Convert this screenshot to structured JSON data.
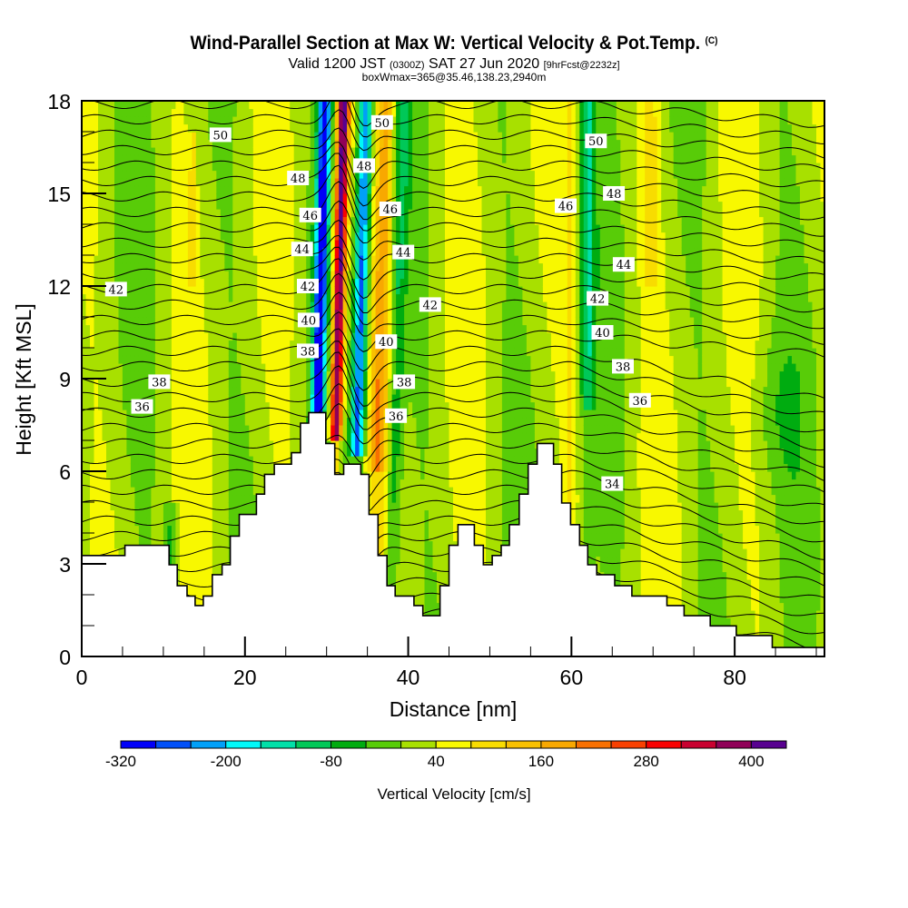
{
  "header": {
    "title": "Wind-Parallel Section at Max W: Vertical Velocity & Pot.Temp.",
    "title_suffix": "(C)",
    "subtitle_main": "Valid 1200 JST",
    "subtitle_utc": "(0300Z)",
    "subtitle_date": "SAT 27 Jun 2020",
    "subtitle_fcst": "[9hrFcst@2232z]",
    "box_info": "boxWmax=365@35.46,138.23,2940m"
  },
  "chart_data": {
    "type": "heatmap",
    "title": "Wind-Parallel Section at Max W: Vertical Velocity & Pot.Temp.",
    "xlabel": "Distance [nm]",
    "ylabel": "Height [Kft MSL]",
    "xlim": [
      0,
      91
    ],
    "ylim": [
      0,
      18
    ],
    "x_ticks": [
      0,
      20,
      40,
      60,
      80
    ],
    "x_tick_labels": [
      "0",
      "20",
      "40",
      "60",
      "80"
    ],
    "x_minor_step": 5,
    "y_ticks": [
      0,
      3,
      6,
      9,
      12,
      15,
      18
    ],
    "y_tick_labels": [
      "0",
      "3",
      "6",
      "9",
      "12",
      "15",
      "18"
    ],
    "y_minor_step": 1,
    "colorbar": {
      "label": "Vertical Velocity [cm/s]",
      "min": -320,
      "max": 440,
      "step": 40,
      "tick_values": [
        -320,
        -200,
        -80,
        40,
        160,
        280,
        400
      ],
      "tick_labels": [
        "-320",
        "-200",
        "-80",
        "40",
        "160",
        "280",
        "400"
      ],
      "colors": [
        "#0000f8",
        "#0050f8",
        "#00a0f8",
        "#00f8f8",
        "#00e0a8",
        "#00c858",
        "#00ac10",
        "#58cc08",
        "#a8e000",
        "#f8f800",
        "#f8dc00",
        "#f8c000",
        "#f8a800",
        "#f87000",
        "#f84000",
        "#f80000",
        "#c80030",
        "#900058",
        "#580090"
      ]
    },
    "updraft_max_cm_s": 365,
    "updraft_center_nm": 32,
    "theta_contour_labels": [
      {
        "value": "50",
        "x_nm": 17,
        "y_kft": 16.9
      },
      {
        "value": "48",
        "x_nm": 26.5,
        "y_kft": 15.5
      },
      {
        "value": "46",
        "x_nm": 28,
        "y_kft": 14.3
      },
      {
        "value": "44",
        "x_nm": 27,
        "y_kft": 13.2
      },
      {
        "value": "42",
        "x_nm": 27.7,
        "y_kft": 12.0
      },
      {
        "value": "40",
        "x_nm": 27.8,
        "y_kft": 10.9
      },
      {
        "value": "38",
        "x_nm": 27.7,
        "y_kft": 9.9
      },
      {
        "value": "42",
        "x_nm": 4.2,
        "y_kft": 11.9
      },
      {
        "value": "38",
        "x_nm": 9.5,
        "y_kft": 8.9
      },
      {
        "value": "36",
        "x_nm": 7.4,
        "y_kft": 8.1
      },
      {
        "value": "50",
        "x_nm": 36.8,
        "y_kft": 17.3
      },
      {
        "value": "48",
        "x_nm": 34.6,
        "y_kft": 15.9
      },
      {
        "value": "46",
        "x_nm": 37.8,
        "y_kft": 14.5
      },
      {
        "value": "44",
        "x_nm": 39.4,
        "y_kft": 13.1
      },
      {
        "value": "42",
        "x_nm": 42.7,
        "y_kft": 11.4
      },
      {
        "value": "40",
        "x_nm": 37.3,
        "y_kft": 10.2
      },
      {
        "value": "38",
        "x_nm": 39.5,
        "y_kft": 8.9
      },
      {
        "value": "36",
        "x_nm": 38.5,
        "y_kft": 7.8
      },
      {
        "value": "50",
        "x_nm": 63,
        "y_kft": 16.7
      },
      {
        "value": "48",
        "x_nm": 65.2,
        "y_kft": 15.0
      },
      {
        "value": "46",
        "x_nm": 59.3,
        "y_kft": 14.6
      },
      {
        "value": "44",
        "x_nm": 66.4,
        "y_kft": 12.7
      },
      {
        "value": "42",
        "x_nm": 63.2,
        "y_kft": 11.6
      },
      {
        "value": "40",
        "x_nm": 63.8,
        "y_kft": 10.5
      },
      {
        "value": "38",
        "x_nm": 66.3,
        "y_kft": 9.4
      },
      {
        "value": "36",
        "x_nm": 68.4,
        "y_kft": 8.3
      },
      {
        "value": "34",
        "x_nm": 65,
        "y_kft": 5.6
      }
    ],
    "terrain_profile": {
      "units": "nm, kft",
      "points": [
        [
          0,
          3.27
        ],
        [
          5.3,
          3.27
        ],
        [
          5.3,
          3.6
        ],
        [
          10.7,
          3.6
        ],
        [
          10.7,
          2.97
        ],
        [
          11.7,
          2.97
        ],
        [
          11.7,
          2.29
        ],
        [
          12.9,
          2.29
        ],
        [
          12.9,
          1.96
        ],
        [
          13.9,
          1.96
        ],
        [
          13.9,
          1.65
        ],
        [
          14.9,
          1.65
        ],
        [
          14.9,
          1.96
        ],
        [
          16.0,
          1.96
        ],
        [
          16.0,
          2.65
        ],
        [
          17.2,
          2.65
        ],
        [
          17.2,
          2.97
        ],
        [
          18.2,
          2.97
        ],
        [
          18.2,
          3.9
        ],
        [
          19.3,
          3.9
        ],
        [
          19.3,
          4.6
        ],
        [
          21.4,
          4.6
        ],
        [
          21.4,
          5.26
        ],
        [
          22.4,
          5.26
        ],
        [
          22.4,
          5.9
        ],
        [
          23.6,
          5.9
        ],
        [
          23.6,
          6.23
        ],
        [
          25.7,
          6.23
        ],
        [
          25.7,
          6.6
        ],
        [
          26.8,
          6.6
        ],
        [
          26.8,
          7.56
        ],
        [
          27.8,
          7.56
        ],
        [
          27.8,
          7.9
        ],
        [
          29.9,
          7.9
        ],
        [
          29.9,
          6.9
        ],
        [
          31.0,
          6.9
        ],
        [
          31.0,
          5.9
        ],
        [
          32.1,
          5.9
        ],
        [
          32.1,
          6.23
        ],
        [
          34.2,
          6.23
        ],
        [
          34.2,
          5.9
        ],
        [
          35.2,
          5.9
        ],
        [
          35.2,
          4.6
        ],
        [
          36.3,
          4.6
        ],
        [
          36.3,
          3.27
        ],
        [
          37.4,
          3.27
        ],
        [
          37.4,
          2.29
        ],
        [
          38.4,
          2.29
        ],
        [
          38.4,
          1.96
        ],
        [
          40.7,
          1.96
        ],
        [
          40.7,
          1.65
        ],
        [
          41.8,
          1.65
        ],
        [
          41.8,
          1.32
        ],
        [
          43.9,
          1.32
        ],
        [
          43.9,
          2.29
        ],
        [
          45.0,
          2.29
        ],
        [
          45.0,
          3.6
        ],
        [
          46.1,
          3.6
        ],
        [
          46.1,
          4.27
        ],
        [
          48.1,
          4.27
        ],
        [
          48.1,
          3.6
        ],
        [
          49.2,
          3.6
        ],
        [
          49.2,
          2.97
        ],
        [
          50.3,
          2.97
        ],
        [
          50.3,
          3.27
        ],
        [
          51.4,
          3.27
        ],
        [
          51.4,
          3.6
        ],
        [
          52.4,
          3.6
        ],
        [
          52.4,
          4.27
        ],
        [
          53.6,
          4.27
        ],
        [
          53.6,
          5.26
        ],
        [
          54.7,
          5.26
        ],
        [
          54.7,
          6.23
        ],
        [
          55.8,
          6.23
        ],
        [
          55.8,
          6.9
        ],
        [
          57.8,
          6.9
        ],
        [
          57.8,
          6.23
        ],
        [
          58.8,
          6.23
        ],
        [
          58.8,
          4.97
        ],
        [
          59.9,
          4.97
        ],
        [
          59.9,
          4.27
        ],
        [
          61.0,
          4.27
        ],
        [
          61.0,
          3.6
        ],
        [
          62.0,
          3.6
        ],
        [
          62.0,
          2.97
        ],
        [
          63.1,
          2.97
        ],
        [
          63.1,
          2.65
        ],
        [
          65.3,
          2.65
        ],
        [
          65.3,
          2.29
        ],
        [
          67.4,
          2.29
        ],
        [
          67.4,
          1.96
        ],
        [
          71.7,
          1.96
        ],
        [
          71.7,
          1.65
        ],
        [
          73.8,
          1.65
        ],
        [
          73.8,
          1.32
        ],
        [
          77.0,
          1.32
        ],
        [
          77.0,
          0.99
        ],
        [
          80.2,
          0.99
        ],
        [
          80.2,
          0.68
        ],
        [
          84.6,
          0.68
        ],
        [
          84.6,
          0.29
        ],
        [
          91,
          0.29
        ]
      ]
    }
  }
}
